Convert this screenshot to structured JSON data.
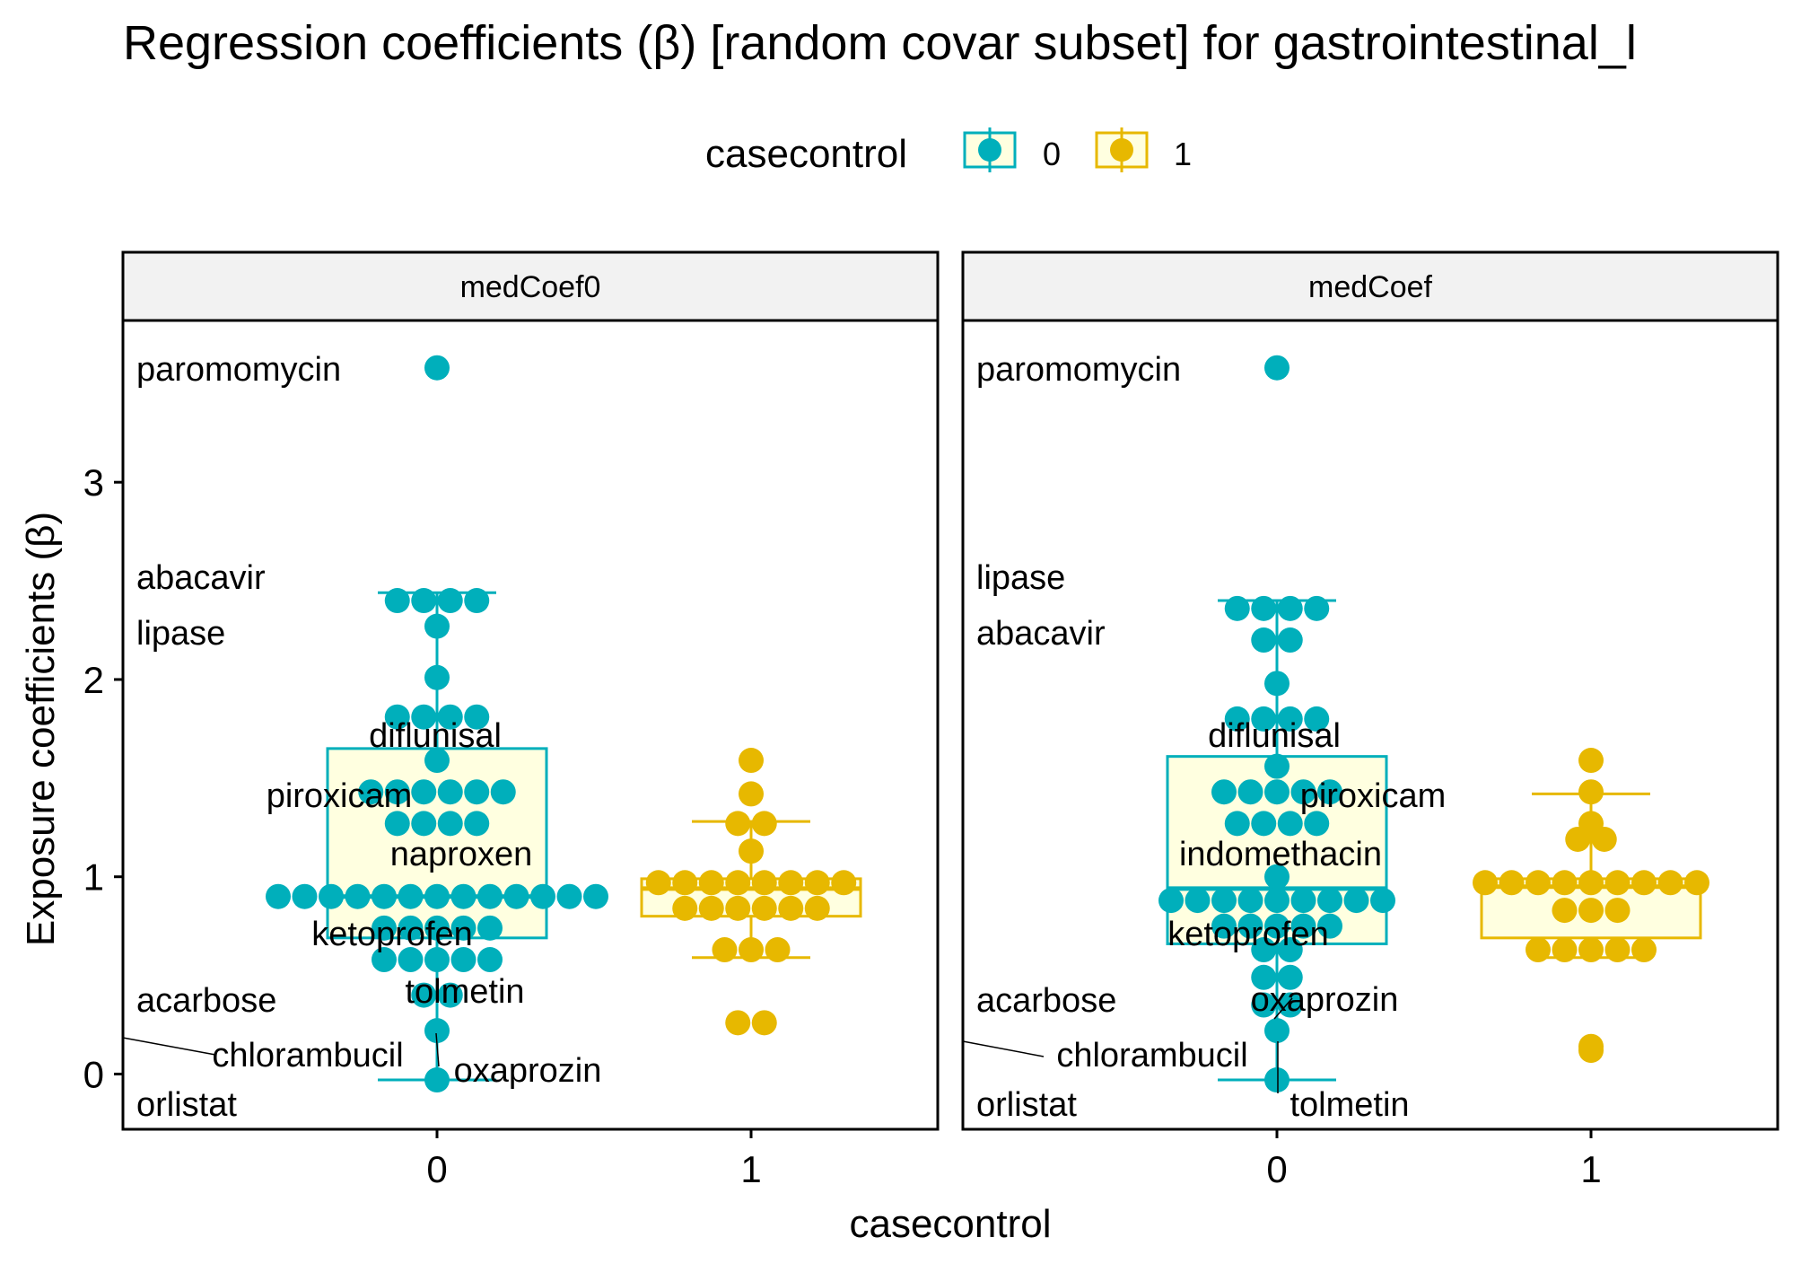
{
  "chart_data": {
    "type": "box",
    "title": "Regression coefficients (β) [random covar subset]  for gastrointestinal_l",
    "xlabel": "casecontrol",
    "ylabel": "Exposure coefficients (β)",
    "ylim": [
      -0.28,
      3.82
    ],
    "yticks": [
      0,
      1,
      2,
      3
    ],
    "categories": [
      "0",
      "1"
    ],
    "grid": false,
    "legend": {
      "title": "casecontrol",
      "position": "top",
      "entries": [
        {
          "label": "0",
          "color": "#00AFBB"
        },
        {
          "label": "1",
          "color": "#E7B800"
        }
      ]
    },
    "box_fill": "#FFFFE0",
    "panels": [
      {
        "strip": "medCoef0",
        "boxes": [
          {
            "group": "0",
            "whisker_low": -0.03,
            "q1": 0.69,
            "median": 0.9,
            "q3": 1.65,
            "whisker_high": 2.44
          },
          {
            "group": "1",
            "whisker_low": 0.59,
            "q1": 0.8,
            "median": 0.94,
            "q3": 0.99,
            "whisker_high": 1.28
          }
        ],
        "points": [
          {
            "group": "0",
            "values": [
              3.58,
              2.4,
              2.4,
              2.4,
              2.4,
              2.27,
              2.01,
              1.81,
              1.81,
              1.81,
              1.81,
              1.59,
              1.43,
              1.43,
              1.43,
              1.43,
              1.43,
              1.43,
              1.27,
              1.27,
              1.27,
              1.27,
              0.9,
              0.9,
              0.9,
              0.9,
              0.9,
              0.9,
              0.9,
              0.9,
              0.9,
              0.9,
              0.9,
              0.9,
              0.9,
              0.74,
              0.74,
              0.74,
              0.74,
              0.74,
              0.58,
              0.58,
              0.58,
              0.58,
              0.58,
              0.4,
              0.4,
              0.22,
              -0.03
            ]
          },
          {
            "group": "1",
            "values": [
              1.59,
              1.42,
              1.27,
              1.27,
              1.13,
              0.97,
              0.97,
              0.97,
              0.97,
              0.97,
              0.97,
              0.97,
              0.97,
              0.84,
              0.84,
              0.84,
              0.84,
              0.84,
              0.84,
              0.63,
              0.63,
              0.63,
              0.26,
              0.26
            ]
          }
        ],
        "labels": [
          "paromomycin",
          "abacavir",
          "lipase",
          "diflunisal",
          "piroxicam",
          "naproxen",
          "ketoprofen",
          "tolmetin",
          "acarbose",
          "chlorambucil",
          "oxaprozin",
          "orlistat"
        ]
      },
      {
        "strip": "medCoef",
        "boxes": [
          {
            "group": "0",
            "whisker_low": -0.03,
            "q1": 0.66,
            "median": 0.94,
            "q3": 1.61,
            "whisker_high": 2.4
          },
          {
            "group": "1",
            "whisker_low": 0.59,
            "q1": 0.69,
            "median": 0.95,
            "q3": 0.99,
            "whisker_high": 1.42
          }
        ],
        "points": [
          {
            "group": "0",
            "values": [
              3.58,
              2.36,
              2.36,
              2.36,
              2.36,
              2.2,
              2.2,
              1.98,
              1.8,
              1.8,
              1.8,
              1.8,
              1.56,
              1.43,
              1.43,
              1.43,
              1.43,
              1.43,
              1.27,
              1.27,
              1.27,
              1.27,
              1.0,
              0.88,
              0.88,
              0.88,
              0.88,
              0.88,
              0.88,
              0.88,
              0.88,
              0.88,
              0.75,
              0.75,
              0.75,
              0.75,
              0.75,
              0.63,
              0.63,
              0.49,
              0.49,
              0.35,
              0.35,
              0.22,
              -0.03
            ]
          },
          {
            "group": "1",
            "values": [
              1.59,
              1.43,
              1.27,
              1.19,
              1.19,
              0.97,
              0.97,
              0.97,
              0.97,
              0.97,
              0.97,
              0.97,
              0.97,
              0.97,
              0.83,
              0.83,
              0.83,
              0.63,
              0.63,
              0.63,
              0.63,
              0.63,
              0.14,
              0.12
            ]
          }
        ],
        "labels": [
          "paromomycin",
          "lipase",
          "abacavir",
          "diflunisal",
          "piroxicam",
          "indomethacin",
          "ketoprofen",
          "oxaprozin",
          "acarbose",
          "chlorambucil",
          "tolmetin",
          "orlistat"
        ]
      }
    ]
  }
}
